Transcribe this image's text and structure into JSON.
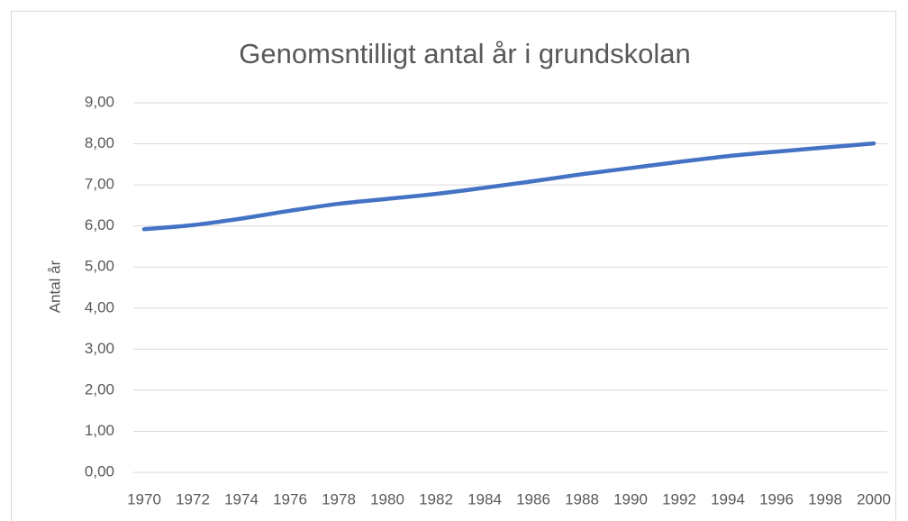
{
  "chart_data": {
    "type": "line",
    "title": "Genomsntilligt antal år i grundskolan",
    "y_label": "Antal år",
    "categories": [
      "1970",
      "1972",
      "1974",
      "1976",
      "1978",
      "1980",
      "1982",
      "1984",
      "1986",
      "1988",
      "1990",
      "1992",
      "1994",
      "1996",
      "1998",
      "2000"
    ],
    "series": [
      {
        "name": "Antal år",
        "color": "#4472c4",
        "values": [
          5.92,
          6.02,
          6.18,
          6.37,
          6.54,
          6.66,
          6.78,
          6.93,
          7.09,
          7.26,
          7.41,
          7.56,
          7.7,
          7.81,
          7.91,
          8.01
        ]
      }
    ],
    "ylim": [
      0,
      9
    ],
    "yticks": [
      {
        "value": 0,
        "label": "0,00"
      },
      {
        "value": 1,
        "label": "1,00"
      },
      {
        "value": 2,
        "label": "2,00"
      },
      {
        "value": 3,
        "label": "3,00"
      },
      {
        "value": 4,
        "label": "4,00"
      },
      {
        "value": 5,
        "label": "5,00"
      },
      {
        "value": 6,
        "label": "6,00"
      },
      {
        "value": 7,
        "label": "7,00"
      },
      {
        "value": 8,
        "label": "8,00"
      },
      {
        "value": 9,
        "label": "9,00"
      }
    ],
    "grid": true,
    "smooth": true
  }
}
